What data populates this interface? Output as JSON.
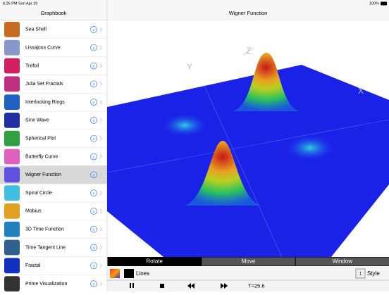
{
  "status_bar": {
    "time": "6:26 PM",
    "date": "Sun Apr 19",
    "battery": "100%"
  },
  "sidebar": {
    "title": "Graphbook",
    "items": [
      "Sea Shell",
      "Lissajous Curve",
      "Trefoil",
      "Julia Set Fractals",
      "Interlocking Rings",
      "Sine Wave",
      "Spherical Plot",
      "Butterfly Curve",
      "Wigner Function",
      "Spiral Circle",
      "Mobius",
      "3D Time Function",
      "Time Tangent Line",
      "Fractal",
      "Prime Visualization"
    ],
    "selected": 8
  },
  "detail": {
    "title": "Wigner Function",
    "axis_labels": [
      "X",
      "Y",
      "Z"
    ],
    "tabs": [
      "Rotate",
      "Move",
      "Window"
    ],
    "selected_tab": 0,
    "display_mode": "Lines",
    "style_button": "1",
    "style_label": "Style",
    "time_label": "T=25.6"
  }
}
